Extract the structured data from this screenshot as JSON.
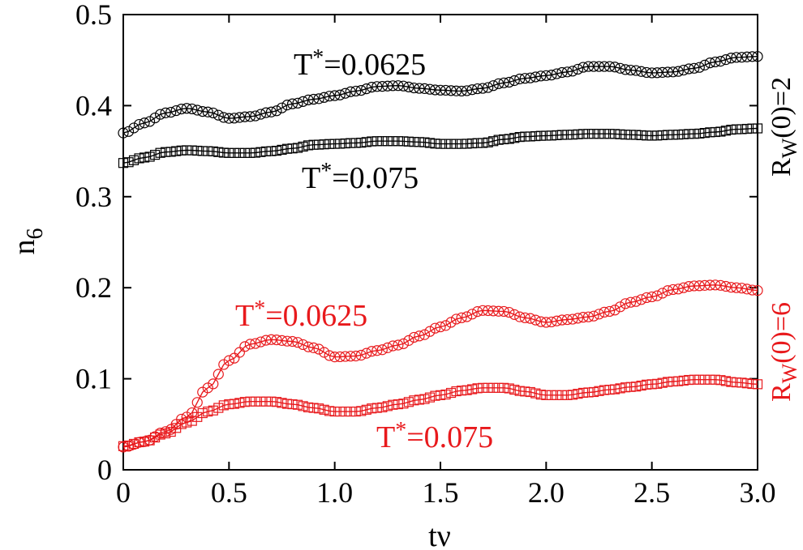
{
  "chart_data": {
    "type": "scatter",
    "title": "",
    "xlabel": "tν",
    "ylabel_main": "n",
    "ylabel_sub": "6",
    "xlim": [
      0,
      3.0
    ],
    "ylim": [
      0,
      0.5
    ],
    "x_ticks": [
      "0",
      "0.5",
      "1.0",
      "1.5",
      "2.0",
      "2.5",
      "3.0"
    ],
    "y_ticks": [
      "0",
      "0.1",
      "0.2",
      "0.3",
      "0.4",
      "0.5"
    ],
    "colors": {
      "black": "#000000",
      "red": "#e8191c"
    },
    "groups": [
      {
        "main": "R",
        "sub": "W",
        "rest": "(0)=2",
        "color": "black"
      },
      {
        "main": "R",
        "sub": "W",
        "rest": "(0)=6",
        "color": "red"
      }
    ],
    "series": [
      {
        "name": "Rw(0)=2, T*=0.0625",
        "label_main": "T",
        "label_star": "*",
        "label_rest": "=0.0625",
        "color": "black",
        "marker": "circle",
        "x": [
          0,
          0.1,
          0.2,
          0.3,
          0.4,
          0.5,
          0.6,
          0.7,
          0.8,
          0.9,
          1.0,
          1.1,
          1.2,
          1.3,
          1.4,
          1.5,
          1.6,
          1.7,
          1.8,
          1.9,
          2.0,
          2.1,
          2.2,
          2.3,
          2.4,
          2.5,
          2.6,
          2.7,
          2.8,
          2.9,
          3.0
        ],
        "y": [
          0.37,
          0.381,
          0.392,
          0.397,
          0.393,
          0.386,
          0.388,
          0.393,
          0.402,
          0.407,
          0.411,
          0.416,
          0.421,
          0.422,
          0.419,
          0.417,
          0.416,
          0.419,
          0.425,
          0.43,
          0.433,
          0.437,
          0.443,
          0.443,
          0.439,
          0.436,
          0.437,
          0.441,
          0.448,
          0.453,
          0.454
        ]
      },
      {
        "name": "Rw(0)=2, T*=0.075",
        "label_main": "T",
        "label_star": "*",
        "label_rest": "=0.075",
        "color": "black",
        "marker": "square",
        "x": [
          0,
          0.1,
          0.2,
          0.3,
          0.4,
          0.5,
          0.6,
          0.7,
          0.8,
          0.9,
          1.0,
          1.1,
          1.2,
          1.3,
          1.4,
          1.5,
          1.6,
          1.7,
          1.8,
          1.9,
          2.0,
          2.1,
          2.2,
          2.3,
          2.4,
          2.5,
          2.6,
          2.7,
          2.8,
          2.9,
          3.0
        ],
        "y": [
          0.337,
          0.343,
          0.349,
          0.351,
          0.35,
          0.348,
          0.348,
          0.35,
          0.353,
          0.357,
          0.358,
          0.359,
          0.361,
          0.361,
          0.36,
          0.358,
          0.358,
          0.359,
          0.363,
          0.366,
          0.367,
          0.368,
          0.369,
          0.369,
          0.368,
          0.367,
          0.368,
          0.369,
          0.371,
          0.374,
          0.375
        ]
      },
      {
        "name": "Rw(0)=6, T*=0.0625",
        "label_main": "T",
        "label_star": "*",
        "label_rest": "=0.0625",
        "color": "red",
        "marker": "circle",
        "x": [
          0,
          0.1,
          0.2,
          0.3,
          0.4,
          0.5,
          0.6,
          0.7,
          0.8,
          0.9,
          1.0,
          1.1,
          1.2,
          1.3,
          1.4,
          1.5,
          1.6,
          1.7,
          1.8,
          1.9,
          2.0,
          2.1,
          2.2,
          2.3,
          2.4,
          2.5,
          2.6,
          2.7,
          2.8,
          2.9,
          3.0
        ],
        "y": [
          0.025,
          0.031,
          0.042,
          0.058,
          0.09,
          0.12,
          0.138,
          0.143,
          0.141,
          0.134,
          0.124,
          0.125,
          0.131,
          0.137,
          0.147,
          0.157,
          0.167,
          0.175,
          0.174,
          0.167,
          0.162,
          0.165,
          0.168,
          0.174,
          0.184,
          0.19,
          0.198,
          0.202,
          0.203,
          0.2,
          0.197
        ]
      },
      {
        "name": "Rw(0)=6, T*=0.075",
        "label_main": "T",
        "label_star": "*",
        "label_rest": "=0.075",
        "color": "red",
        "marker": "square",
        "x": [
          0,
          0.1,
          0.2,
          0.3,
          0.4,
          0.5,
          0.6,
          0.7,
          0.8,
          0.9,
          1.0,
          1.1,
          1.2,
          1.3,
          1.4,
          1.5,
          1.6,
          1.7,
          1.8,
          1.9,
          2.0,
          2.1,
          2.2,
          2.3,
          2.4,
          2.5,
          2.6,
          2.7,
          2.8,
          2.9,
          3.0
        ],
        "y": [
          0.026,
          0.031,
          0.04,
          0.052,
          0.064,
          0.072,
          0.075,
          0.075,
          0.072,
          0.068,
          0.064,
          0.064,
          0.068,
          0.072,
          0.077,
          0.082,
          0.087,
          0.09,
          0.09,
          0.086,
          0.082,
          0.082,
          0.085,
          0.088,
          0.091,
          0.094,
          0.097,
          0.099,
          0.099,
          0.096,
          0.094
        ]
      }
    ]
  }
}
